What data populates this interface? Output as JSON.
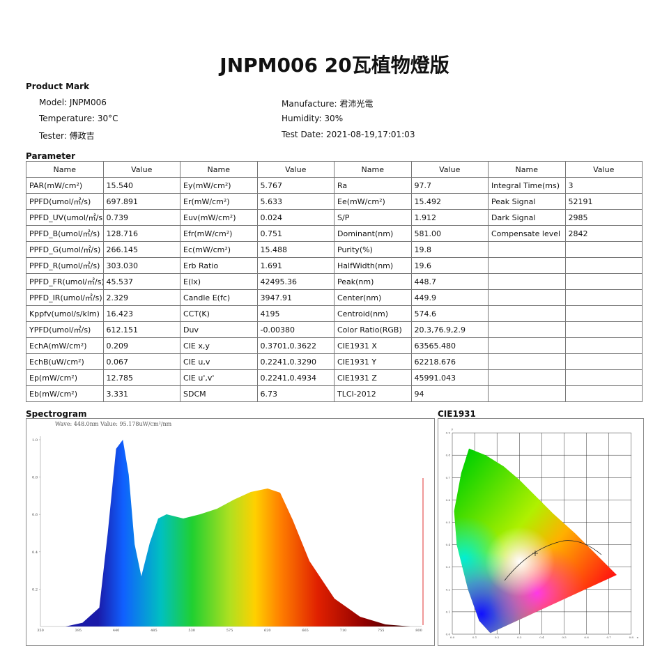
{
  "title": "JNPM006 20瓦植物燈版",
  "product_mark": {
    "heading": "Product Mark",
    "fields": [
      {
        "label": "Model:",
        "value": "JNPM006"
      },
      {
        "label": "Manufacture:",
        "value": "君沛光電"
      },
      {
        "label": "Temperature:",
        "value": "30°C"
      },
      {
        "label": "Humidity:",
        "value": "30%"
      },
      {
        "label": "Tester:",
        "value": "傅政吉"
      },
      {
        "label": "Test Date:",
        "value": "2021-08-19,17:01:03"
      }
    ]
  },
  "parameter": {
    "heading": "Parameter",
    "columns": [
      "Name",
      "Value"
    ],
    "groups": [
      [
        [
          "PAR(mW/cm²)",
          "15.540"
        ],
        [
          "PPFD(umol/㎡/s)",
          "697.891"
        ],
        [
          "PPFD_UV(umol/㎡/s)",
          "0.739"
        ],
        [
          "PPFD_B(umol/㎡/s)",
          "128.716"
        ],
        [
          "PPFD_G(umol/㎡/s)",
          "266.145"
        ],
        [
          "PPFD_R(umol/㎡/s)",
          "303.030"
        ],
        [
          "PPFD_FR(umol/㎡/s)",
          "45.537"
        ],
        [
          "PPFD_IR(umol/㎡/s)",
          "2.329"
        ],
        [
          "Kppfv(umol/s/klm)",
          "16.423"
        ],
        [
          "YPFD(umol/㎡/s)",
          "612.151"
        ],
        [
          "EchA(mW/cm²)",
          "0.209"
        ],
        [
          "EchB(uW/cm²)",
          "0.067"
        ],
        [
          "Ep(mW/cm²)",
          "12.785"
        ],
        [
          "Eb(mW/cm²)",
          "3.331"
        ]
      ],
      [
        [
          "Ey(mW/cm²)",
          "5.767"
        ],
        [
          "Er(mW/cm²)",
          "5.633"
        ],
        [
          "Euv(mW/cm²)",
          "0.024"
        ],
        [
          "Efr(mW/cm²)",
          "0.751"
        ],
        [
          "Ec(mW/cm²)",
          "15.488"
        ],
        [
          "Erb Ratio",
          "1.691"
        ],
        [
          "E(lx)",
          "42495.36"
        ],
        [
          "Candle E(fc)",
          "3947.91"
        ],
        [
          "CCT(K)",
          "4195"
        ],
        [
          "Duv",
          "-0.00380"
        ],
        [
          "CIE x,y",
          "0.3701,0.3622"
        ],
        [
          "CIE u,v",
          "0.2241,0.3290"
        ],
        [
          "CIE u',v'",
          "0.2241,0.4934"
        ],
        [
          "SDCM",
          "6.73"
        ]
      ],
      [
        [
          "Ra",
          "97.7"
        ],
        [
          "Ee(mW/cm²)",
          "15.492"
        ],
        [
          "S/P",
          "1.912"
        ],
        [
          "Dominant(nm)",
          "581.00"
        ],
        [
          "Purity(%)",
          "19.8"
        ],
        [
          "HalfWidth(nm)",
          "19.6"
        ],
        [
          "Peak(nm)",
          "448.7"
        ],
        [
          "Center(nm)",
          "449.9"
        ],
        [
          "Centroid(nm)",
          "574.6"
        ],
        [
          "Color Ratio(RGB)",
          "20.3,76.9,2.9"
        ],
        [
          "CIE1931 X",
          "63565.480"
        ],
        [
          "CIE1931 Y",
          "62218.676"
        ],
        [
          "CIE1931 Z",
          "45991.043"
        ],
        [
          "TLCI-2012",
          "94"
        ]
      ],
      [
        [
          "Integral Time(ms)",
          "3"
        ],
        [
          "Peak Signal",
          "52191"
        ],
        [
          "Dark Signal",
          "2985"
        ],
        [
          "Compensate level",
          "2842"
        ]
      ]
    ]
  },
  "spectrogram": {
    "heading": "Spectrogram",
    "caption": "Wave: 448.0nm Value: 95.178uW/cm²/nm",
    "xticks": [
      "350",
      "395",
      "440",
      "485",
      "530",
      "575",
      "620",
      "665",
      "710",
      "755",
      "800"
    ],
    "yticks": [
      "0.2",
      "0.4",
      "0.6",
      "0.8",
      "1.0"
    ]
  },
  "cie": {
    "heading": "CIE1931",
    "x_label": "x",
    "y_label": "y",
    "xticks": [
      "0.0",
      "0.1",
      "0.2",
      "0.3",
      "0.4",
      "0.5",
      "0.6",
      "0.7",
      "0.8"
    ],
    "yticks": [
      "0.0",
      "0.1",
      "0.2",
      "0.3",
      "0.4",
      "0.5",
      "0.6",
      "0.7",
      "0.8",
      "0.9"
    ]
  }
}
